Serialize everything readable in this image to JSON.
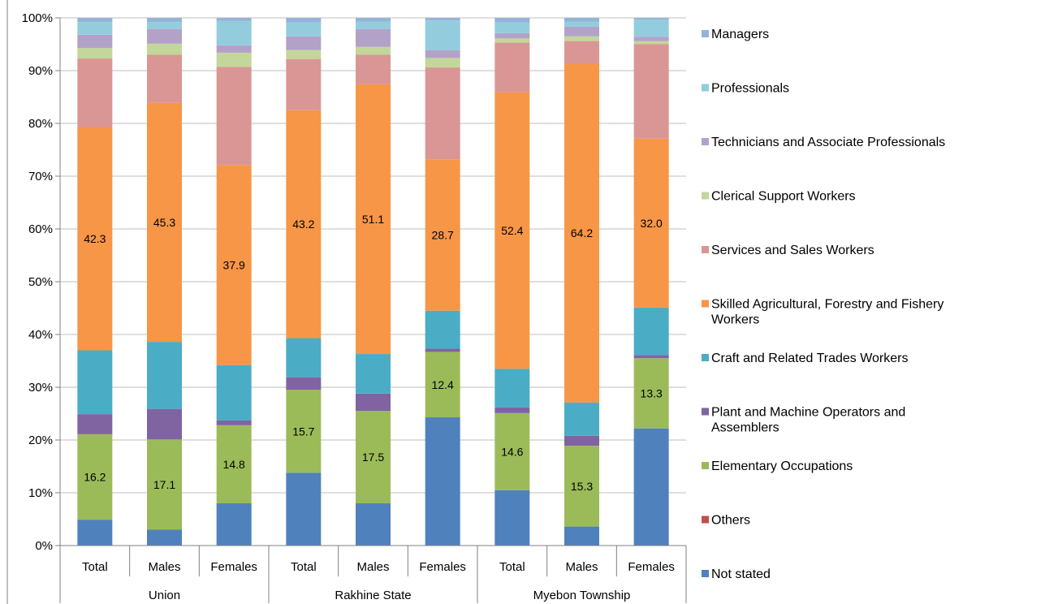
{
  "chart_data": {
    "type": "bar",
    "stacked": true,
    "percent": true,
    "ylim": [
      0,
      100
    ],
    "y_ticks": [
      "0%",
      "10%",
      "20%",
      "30%",
      "40%",
      "50%",
      "60%",
      "70%",
      "80%",
      "90%",
      "100%"
    ],
    "grid": true,
    "legend_position": "right",
    "groups": [
      {
        "name": "Union",
        "categories": [
          "Total",
          "Males",
          "Females"
        ]
      },
      {
        "name": "Rakhine State",
        "categories": [
          "Total",
          "Males",
          "Females"
        ]
      },
      {
        "name": "Myebon Township",
        "categories": [
          "Total",
          "Males",
          "Females"
        ]
      }
    ],
    "series": [
      {
        "name": "Not stated",
        "color": "#4f81bd",
        "values": [
          4.9,
          3.0,
          8.0,
          13.8,
          8.0,
          24.3,
          10.5,
          3.6,
          22.2
        ]
      },
      {
        "name": "Others",
        "color": "#c0504d",
        "values": [
          0.0,
          0.0,
          0.0,
          0.0,
          0.0,
          0.0,
          0.0,
          0.0,
          0.0
        ]
      },
      {
        "name": "Elementary Occupations",
        "color": "#9bbb59",
        "values": [
          16.2,
          17.1,
          14.8,
          15.7,
          17.5,
          12.4,
          14.6,
          15.3,
          13.3
        ]
      },
      {
        "name": "Plant and Machine Operators and Assemblers",
        "color": "#8064a2",
        "values": [
          3.8,
          5.8,
          0.9,
          2.4,
          3.3,
          0.6,
          1.1,
          1.9,
          0.6
        ]
      },
      {
        "name": "Craft and Related Trades Workers",
        "color": "#4bacc6",
        "values": [
          12.1,
          12.7,
          10.5,
          7.4,
          7.5,
          7.2,
          7.3,
          6.3,
          9.0
        ]
      },
      {
        "name": "Skilled Agricultural, Forestry and Fishery Workers",
        "color": "#f79646",
        "values": [
          42.3,
          45.3,
          37.9,
          43.2,
          51.1,
          28.7,
          52.4,
          64.2,
          32.0
        ]
      },
      {
        "name": "Services and Sales Workers",
        "color": "#d99694",
        "values": [
          13.0,
          9.1,
          18.6,
          9.7,
          5.6,
          17.4,
          9.4,
          4.3,
          17.9
        ]
      },
      {
        "name": "Clerical Support Workers",
        "color": "#c3d69b",
        "values": [
          2.0,
          2.1,
          2.7,
          1.7,
          1.5,
          1.8,
          0.8,
          0.9,
          0.6
        ]
      },
      {
        "name": "Technicians and Associate Professionals",
        "color": "#b3a2c7",
        "values": [
          2.5,
          2.8,
          1.4,
          2.6,
          3.4,
          1.5,
          1.0,
          1.8,
          0.8
        ]
      },
      {
        "name": "Professionals",
        "color": "#93cddd",
        "values": [
          2.4,
          1.3,
          4.6,
          2.6,
          1.4,
          5.6,
          2.0,
          1.0,
          3.3
        ]
      },
      {
        "name": "Managers",
        "color": "#95b3d7",
        "values": [
          0.8,
          0.8,
          0.6,
          0.9,
          0.7,
          0.5,
          0.9,
          0.7,
          0.3
        ]
      }
    ],
    "data_labels": [
      {
        "series": "Skilled Agricultural, Forestry and Fishery Workers",
        "values": [
          "42.3",
          "45.3",
          "37.9",
          "43.2",
          "51.1",
          "28.7",
          "52.4",
          "64.2",
          "32.0"
        ]
      },
      {
        "series": "Elementary Occupations",
        "values": [
          "16.2",
          "17.1",
          "14.8",
          "15.7",
          "17.5",
          "12.4",
          "14.6",
          "15.3",
          "13.3"
        ]
      }
    ],
    "legend_order": [
      "Managers",
      "Professionals",
      "Technicians and Associate Professionals",
      "Clerical Support Workers",
      "Services and Sales Workers",
      "Skilled Agricultural, Forestry and Fishery Workers",
      "Craft and Related Trades Workers",
      "Plant and Machine Operators and Assemblers",
      "Elementary Occupations",
      "Others",
      "Not stated"
    ],
    "legend_lines": [
      [
        "Managers"
      ],
      [
        "Professionals"
      ],
      [
        "Technicians and Associate Professionals"
      ],
      [
        "Clerical Support Workers"
      ],
      [
        "Services and Sales Workers"
      ],
      [
        "Skilled Agricultural, Forestry and Fishery",
        "Workers"
      ],
      [
        "Craft and Related Trades Workers"
      ],
      [
        "Plant and Machine Operators and",
        "Assemblers"
      ],
      [
        "Elementary Occupations"
      ],
      [
        "Others"
      ],
      [
        "Not stated"
      ]
    ]
  }
}
